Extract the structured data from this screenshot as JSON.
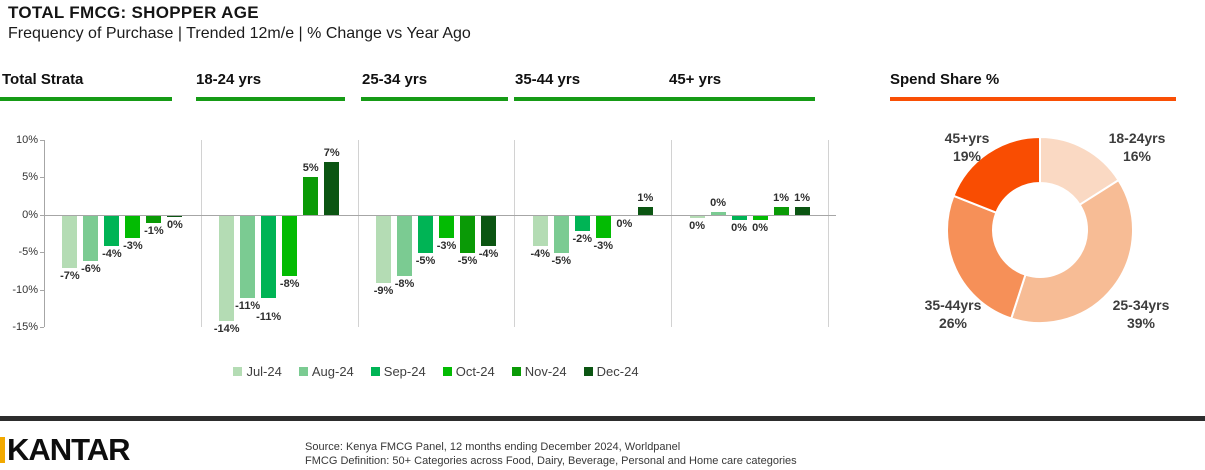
{
  "header": {
    "title": "TOTAL FMCG: SHOPPER AGE",
    "subtitle": "Frequency of Purchase | Trended 12m/e | % Change vs Year Ago"
  },
  "chart_data": [
    {
      "type": "bar",
      "title": "Frequency of Purchase % Change vs Year Ago by Shopper Age",
      "categories": [
        "Jul-24",
        "Aug-24",
        "Sep-24",
        "Oct-24",
        "Nov-24",
        "Dec-24"
      ],
      "series_colors": [
        "#b4dcb4",
        "#7bcb92",
        "#00b455",
        "#03bb03",
        "#0a9a06",
        "#0b5512"
      ],
      "ylim": [
        -15,
        10
      ],
      "yticks": [
        "10%",
        "5%",
        "0%",
        "-5%",
        "-10%",
        "-15%"
      ],
      "grid": "zero-line-only",
      "legend_position": "bottom",
      "groups": [
        {
          "label": "Total Strata",
          "values": [
            -7,
            -6,
            -4,
            -3,
            -1,
            -0.2
          ],
          "labels": [
            "-7%",
            "-6%",
            "-4%",
            "-3%",
            "-1%",
            "0%"
          ]
        },
        {
          "label": "18-24 yrs",
          "values": [
            -14,
            -11,
            -11,
            -8,
            5,
            7
          ],
          "labels": [
            "-14%",
            "-11%",
            "-11%",
            "-8%",
            "5%",
            "7%"
          ]
        },
        {
          "label": "25-34 yrs",
          "values": [
            -9,
            -8,
            -5,
            -3,
            -5,
            -4
          ],
          "labels": [
            "-9%",
            "-8%",
            "-5%",
            "-3%",
            "-5%",
            "-4%"
          ]
        },
        {
          "label": "35-44 yrs",
          "values": [
            -4,
            -5,
            -2,
            -3,
            0,
            1
          ],
          "labels": [
            "-4%",
            "-5%",
            "-2%",
            "-3%",
            "0%",
            "1%"
          ]
        },
        {
          "label": "45+ yrs",
          "values": [
            -0.3,
            0.4,
            -0.5,
            -0.6,
            1,
            1
          ],
          "labels": [
            "0%",
            "0%",
            "0%",
            "0%",
            "1%",
            "1%"
          ]
        }
      ]
    },
    {
      "type": "donut",
      "title": "Spend Share %",
      "accent_color": "#f94f05",
      "segments": [
        {
          "label": "18-24yrs",
          "pct": 16,
          "color": "#fad9c3"
        },
        {
          "label": "25-34yrs",
          "pct": 39,
          "color": "#f7bc95"
        },
        {
          "label": "35-44yrs",
          "pct": 26,
          "color": "#f69058"
        },
        {
          "label": "45+yrs",
          "pct": 19,
          "color": "#f94d02"
        }
      ]
    }
  ],
  "footer": {
    "logo": "KANTAR",
    "source_line1": "Source: Kenya FMCG Panel, 12 months ending December 2024, Worldpanel",
    "source_line2": "FMCG Definition: 50+ Categories across Food, Dairy, Beverage, Personal and Home care categories"
  }
}
